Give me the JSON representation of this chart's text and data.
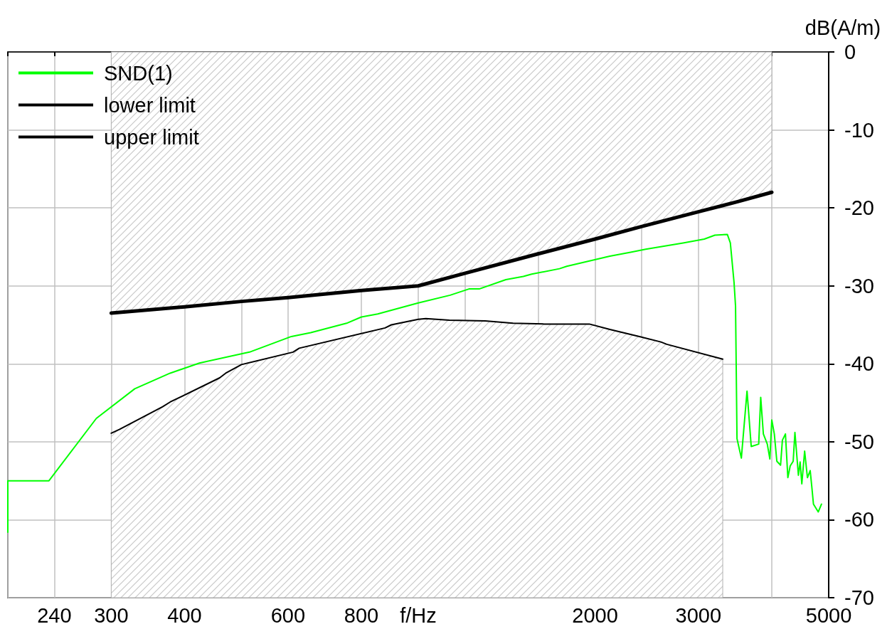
{
  "chart_data": {
    "type": "line",
    "ylabel": "dB(A/m)",
    "log": "x",
    "grid": true,
    "legend": "top left",
    "marker": "none",
    "line_style": "solid",
    "xlim": [
      200,
      5000
    ],
    "ylim": [
      -70,
      0
    ],
    "xticks": [
      {
        "value": 200,
        "label": null
      },
      240,
      300,
      400,
      {
        "value": 500,
        "label": null
      },
      600,
      800,
      {
        "value": 1000,
        "label": "f/Hz"
      },
      {
        "value": 1200,
        "label": null
      },
      {
        "value": 1600,
        "label": null
      },
      2000,
      {
        "value": 2400,
        "label": null
      },
      3000,
      {
        "value": 4000,
        "label": null
      },
      5000
    ],
    "yticks": [
      0,
      -10,
      -20,
      -30,
      -40,
      -50,
      -60,
      -70
    ],
    "series": [
      {
        "name": "SND(1)",
        "color": "#00ff00",
        "x": [
          200,
          200,
          235,
          283,
          329,
          378,
          424,
          516,
          608,
          656,
          755,
          800,
          853,
          1000,
          1133,
          1220,
          1270,
          1410,
          1510,
          1560,
          1740,
          1790,
          2120,
          2300,
          2440,
          2825,
          3070,
          3200,
          3360,
          3400,
          3450,
          3470,
          3490,
          3550,
          3630,
          3690,
          3800,
          3830,
          3870,
          3930,
          3970,
          4000,
          4040,
          4080,
          4140,
          4170,
          4220,
          4260,
          4300,
          4350,
          4380,
          4440,
          4470,
          4500,
          4550,
          4600,
          4650,
          4680,
          4710,
          4800,
          4860
        ],
        "values": [
          -61.6,
          -55.0,
          -55.0,
          -47.0,
          -43.2,
          -41.2,
          -39.9,
          -38.5,
          -36.5,
          -36.0,
          -34.8,
          -34.0,
          -33.6,
          -32.2,
          -31.2,
          -30.4,
          -30.4,
          -29.2,
          -28.8,
          -28.5,
          -27.8,
          -27.5,
          -26.2,
          -25.7,
          -25.3,
          -24.5,
          -24.0,
          -23.5,
          -23.4,
          -24.5,
          -29.6,
          -32.6,
          -49.6,
          -52.1,
          -43.5,
          -50.6,
          -50.3,
          -44.3,
          -49.0,
          -50.3,
          -52.2,
          -47.2,
          -49.0,
          -52.5,
          -53.0,
          -49.8,
          -49.0,
          -54.6,
          -53.1,
          -52.5,
          -48.8,
          -54.3,
          -52.6,
          -55.4,
          -51.2,
          -54.6,
          -53.7,
          -55.8,
          -58.0,
          -59.0,
          -58.0
        ]
      },
      {
        "name": "lower limit",
        "color": "#000000",
        "x": [
          300,
          310,
          367,
          378,
          459,
          470,
          500,
          612,
          627,
          878,
          900,
          1000,
          1030,
          1130,
          1300,
          1450,
          1640,
          1956,
          2120,
          2380,
          2590,
          2650,
          3300
        ],
        "values": [
          -48.9,
          -48.4,
          -45.5,
          -44.9,
          -41.8,
          -41.2,
          -40.1,
          -38.5,
          -38.0,
          -35.4,
          -35.0,
          -34.3,
          -34.2,
          -34.4,
          -34.5,
          -34.8,
          -34.9,
          -34.9,
          -35.6,
          -36.5,
          -37.2,
          -37.5,
          -39.4
        ],
        "lower": [
          -70,
          -70,
          -70,
          -70,
          -70,
          -70,
          -70,
          -70,
          -70,
          -70,
          -70,
          -70,
          -70,
          -70,
          -70,
          -70,
          -70,
          -70,
          -70,
          -70,
          -70,
          -70,
          -70
        ],
        "upper": [
          -48.9,
          -48.4,
          -45.5,
          -44.9,
          -41.8,
          -41.2,
          -40.1,
          -38.5,
          -38.0,
          -35.4,
          -35.0,
          -34.3,
          -34.2,
          -34.4,
          -34.5,
          -34.8,
          -34.9,
          -34.9,
          -35.6,
          -36.5,
          -37.2,
          -37.5,
          -39.4
        ]
      },
      {
        "name": "upper limit",
        "color": "#000000",
        "x": [
          300,
          400,
          500,
          600,
          800,
          1000,
          1200,
          1600,
          2000,
          2400,
          3000,
          3500,
          4000
        ],
        "values": [
          -33.5,
          -32.7,
          -32.0,
          -31.5,
          -30.6,
          -30.0,
          -28.4,
          -25.9,
          -24.0,
          -22.4,
          -20.5,
          -19.2,
          -18.0
        ],
        "lower": [
          -33.5,
          -32.7,
          -32.0,
          -31.5,
          -30.6,
          -30.0,
          -28.4,
          -25.9,
          -24.0,
          -22.4,
          -20.5,
          -19.2,
          -18.0
        ],
        "upper": [
          0,
          0,
          0,
          0,
          0,
          0,
          0,
          0,
          0,
          0,
          0,
          0,
          0
        ]
      }
    ]
  }
}
